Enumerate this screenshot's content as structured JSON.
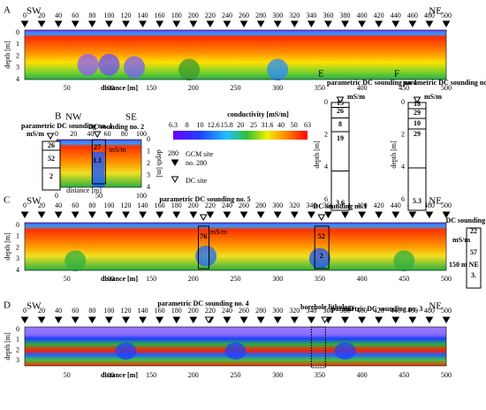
{
  "panels": [
    {
      "letter": "A",
      "left": "SW",
      "right": "NE",
      "xlabel": "distance [m]",
      "ylabel": "depth [m]",
      "top_ticks": [
        0,
        20,
        40,
        60,
        80,
        100,
        120,
        140,
        160,
        180,
        200,
        220,
        240,
        260,
        280,
        300,
        320,
        340,
        360,
        380,
        400,
        420,
        440,
        460,
        480,
        500
      ],
      "bottom_ticks": [
        50,
        100,
        150,
        200,
        250,
        300,
        350,
        400,
        450,
        500
      ],
      "depth_ticks": [
        0,
        1,
        2,
        3,
        4
      ]
    },
    {
      "letter": "C",
      "left": "SW",
      "right": "NE",
      "xlabel": "distance [m]",
      "ylabel": "depth [m]",
      "top_ticks": [
        0,
        20,
        40,
        60,
        80,
        100,
        120,
        140,
        160,
        180,
        200,
        220,
        240,
        260,
        280,
        300,
        320,
        340,
        360,
        380,
        400,
        420,
        440,
        460,
        480,
        500
      ],
      "bottom_ticks": [
        50,
        100,
        150,
        200,
        250,
        300,
        350,
        400,
        450,
        500
      ],
      "depth_ticks": [
        0,
        1,
        2,
        3,
        4
      ]
    },
    {
      "letter": "D",
      "left": "SW",
      "right": "NE",
      "xlabel": "distance [m]",
      "ylabel": "depth [m]",
      "top_ticks": [
        0,
        20,
        40,
        60,
        80,
        100,
        120,
        140,
        160,
        180,
        200,
        220,
        240,
        260,
        280,
        300,
        320,
        340,
        360,
        380,
        400,
        420,
        440,
        460,
        480,
        500
      ],
      "bottom_ticks": [
        50,
        100,
        150,
        200,
        250,
        300,
        350,
        400,
        450,
        500
      ],
      "depth_ticks": [
        0,
        1,
        2,
        3
      ]
    }
  ],
  "panel_b": {
    "letter": "B",
    "left": "NW",
    "right": "SE",
    "sounding1": "parametric DC sounding no. 1",
    "unit": "mS/m",
    "layers1": [
      26,
      52,
      2
    ],
    "sounding2": "DC sounding no. 2",
    "layers2": [
      27,
      1.1
    ],
    "unit2": "mS/m",
    "top_ticks": [
      0,
      20,
      40,
      60,
      80,
      100
    ],
    "bottom_ticks": [
      0,
      50,
      100
    ],
    "xlabel": "distance [m]",
    "ylabel": "depth [m]",
    "depth_ticks": [
      0,
      1,
      2,
      3,
      4
    ]
  },
  "colorbar": {
    "title": "conductivity [mS/m]",
    "ticks": [
      6.3,
      8,
      10,
      12.6,
      15.8,
      20,
      25,
      31.6,
      40,
      50,
      63
    ]
  },
  "legend": {
    "gcm_number": "280",
    "gcm_label": "GCM site",
    "gcm_sub": "no. 280",
    "dc_label": "DC site"
  },
  "panel_e": {
    "letter": "E",
    "title": "parametric DC sounding no 4",
    "unit": "mS/m",
    "layers": [
      15,
      26,
      8,
      19,
      3.6
    ],
    "ylabel": "depth [m]",
    "depth_ticks": [
      0,
      2,
      4,
      6
    ]
  },
  "panel_f": {
    "letter": "F",
    "title": "parametric DC sounding no 3",
    "unit": "mS/m",
    "layers": [
      18,
      29,
      10,
      29,
      5.3
    ],
    "ylabel": "depth [m]",
    "depth_ticks": [
      0,
      2,
      4,
      6
    ]
  },
  "panel_c_notes": {
    "s5": "parametric DC sounding no. 5",
    "s5_value": 76,
    "s5_unit": "mS/m",
    "s1": "DC sounding no.1",
    "s1_values": [
      52,
      2
    ],
    "s6": "DC sounding no. 6",
    "s6_values": [
      22,
      57
    ],
    "s6_last": "3.",
    "s6_unit": "mS/m",
    "s6_dist": "150 m NE"
  },
  "panel_d_notes": {
    "s4": "parametric DC sounding no. 4",
    "bore": "borehole lithology",
    "s3": "parametric DC sounding no. 3"
  }
}
